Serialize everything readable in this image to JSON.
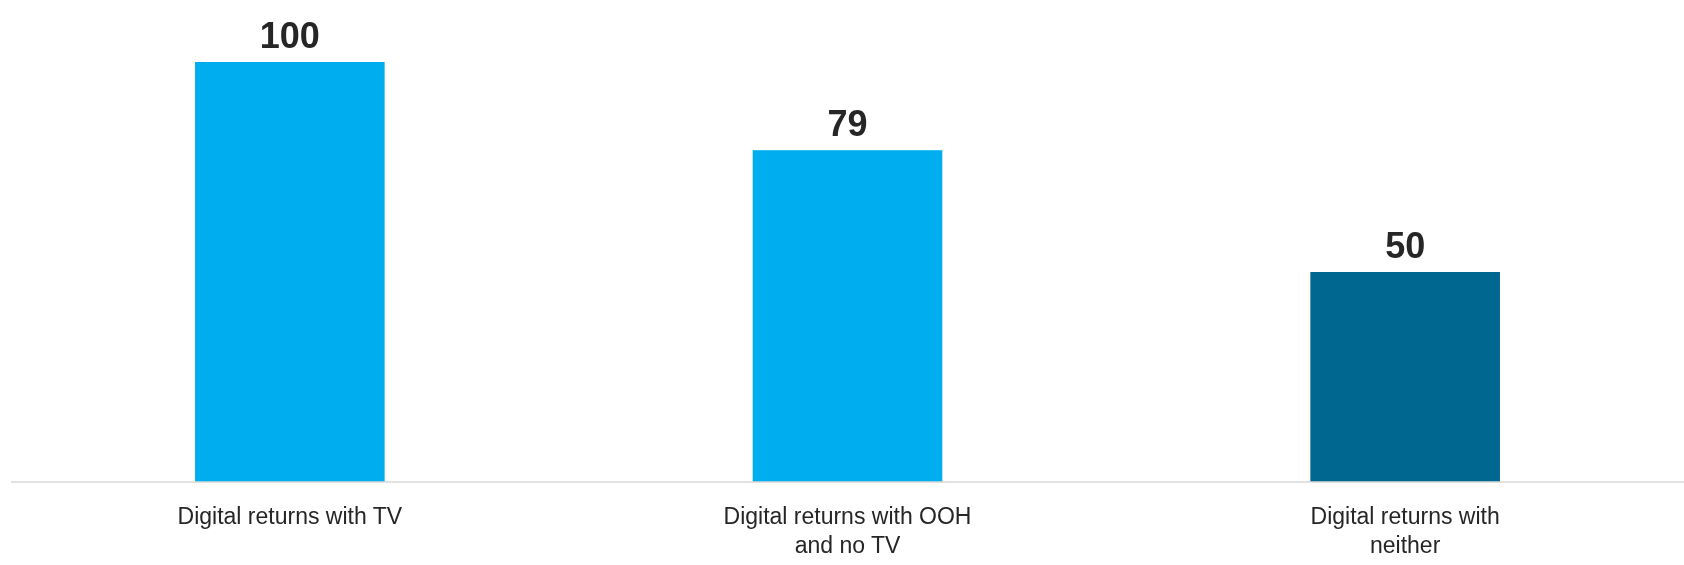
{
  "chart_data": {
    "type": "bar",
    "categories": [
      "Digital returns with TV",
      "Digital returns with OOH and no TV",
      "Digital returns with neither"
    ],
    "values": [
      100,
      79,
      50
    ],
    "colors": [
      "#00aeef",
      "#00aeef",
      "#006890"
    ],
    "data_labels": true
  }
}
